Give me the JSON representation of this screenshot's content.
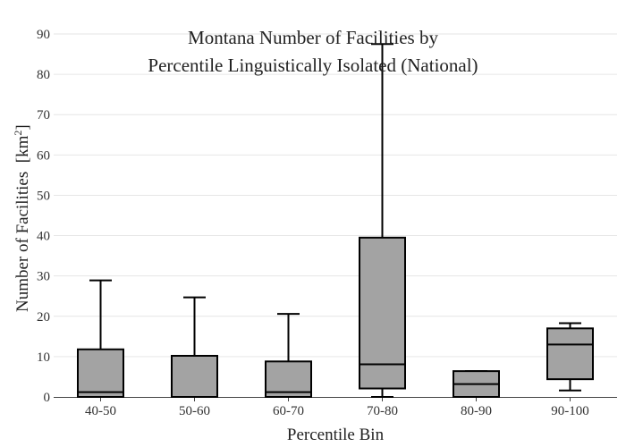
{
  "chart_data": {
    "type": "box",
    "title_lines": [
      "Montana Number of Facilities by",
      "Percentile Linguistically Isolated (National)"
    ],
    "xlabel": "Percentile Bin",
    "ylabel": "Number of Facilities",
    "ylabel_unit": "[km",
    "ylabel_unit_sup": "2",
    "ylabel_unit_close": "]",
    "ylim": [
      0,
      90
    ],
    "yticks": [
      0,
      10,
      20,
      30,
      40,
      50,
      60,
      70,
      80,
      90
    ],
    "grid": true,
    "box_fill": "#a3a3a3",
    "box_stroke": "#000000",
    "grid_color": "#e6e6e6",
    "categories": [
      "40-50",
      "50-60",
      "60-70",
      "70-80",
      "80-90",
      "90-100"
    ],
    "boxes": [
      {
        "category": "40-50",
        "min": 0,
        "q1": 0,
        "median": 1.2,
        "q3": 11.8,
        "max": 28.9
      },
      {
        "category": "50-60",
        "min": 0,
        "q1": 0,
        "median": 0,
        "q3": 10.2,
        "max": 24.7
      },
      {
        "category": "60-70",
        "min": 0,
        "q1": 0,
        "median": 1.2,
        "q3": 8.8,
        "max": 20.6
      },
      {
        "category": "70-80",
        "min": 0,
        "q1": 2.1,
        "median": 8.1,
        "q3": 39.5,
        "max": 87.5
      },
      {
        "category": "80-90",
        "min": 0,
        "q1": 0,
        "median": 3.2,
        "q3": 6.4,
        "max": 6.4
      },
      {
        "category": "90-100",
        "min": 1.6,
        "q1": 4.4,
        "median": 13,
        "q3": 17,
        "max": 18.3
      }
    ]
  }
}
